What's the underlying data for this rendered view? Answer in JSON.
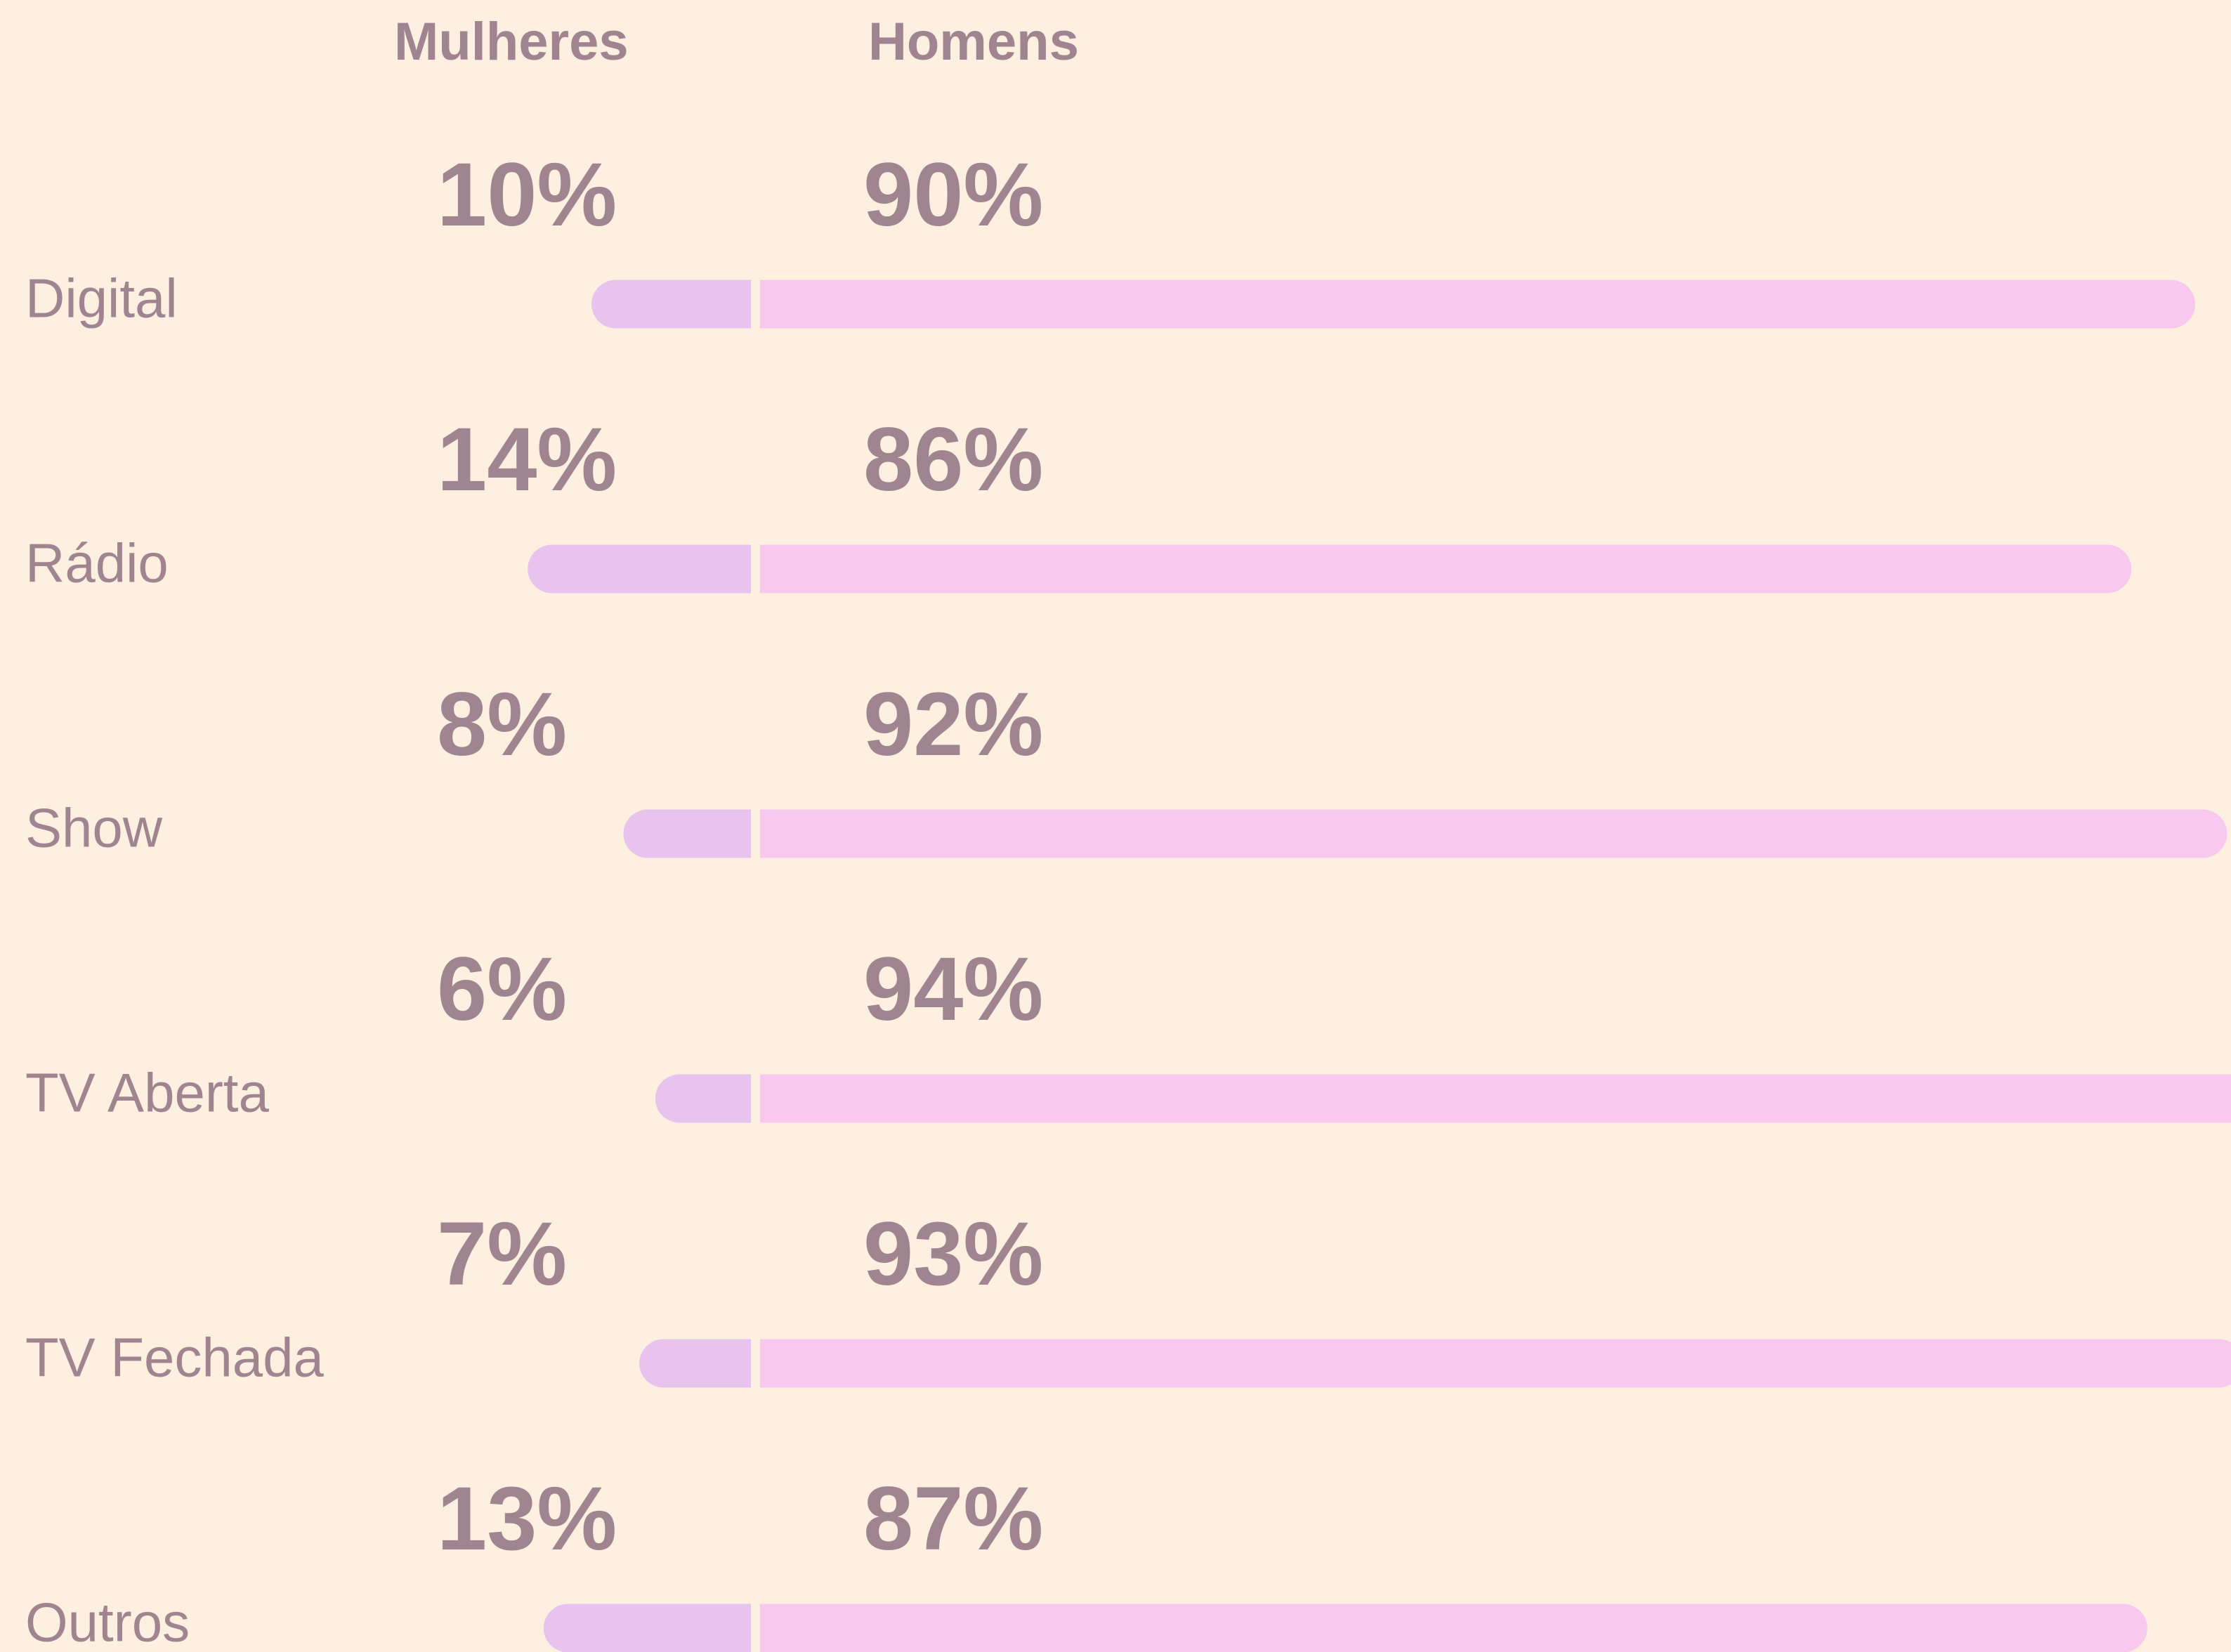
{
  "chart_data": {
    "type": "diverging-bar",
    "categories": [
      "Digital",
      "Rádio",
      "Show",
      "TV Aberta",
      "TV Fechada",
      "Outros"
    ],
    "series": [
      {
        "name": "Mulheres",
        "color": "#e8c3ee",
        "values": [
          10,
          14,
          8,
          6,
          7,
          13
        ],
        "value_labels": [
          "10%",
          "14%",
          "8%",
          "6%",
          "7%",
          "13%"
        ]
      },
      {
        "name": "Homens",
        "color": "#f9c8ee",
        "values": [
          90,
          86,
          92,
          94,
          93,
          87
        ],
        "value_labels": [
          "90%",
          "86%",
          "92%",
          "94%",
          "93%",
          "87%"
        ]
      }
    ]
  }
}
